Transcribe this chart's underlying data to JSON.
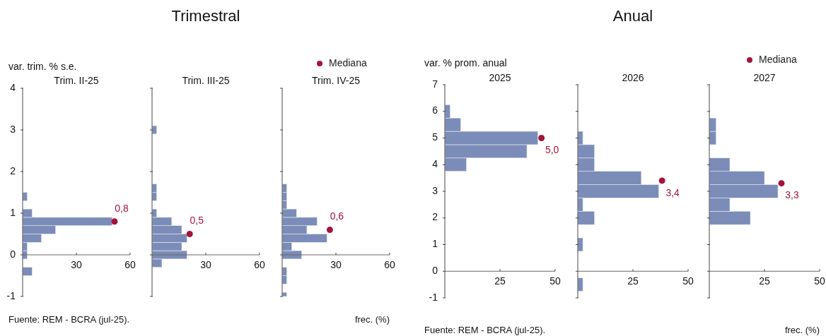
{
  "chart_data": [
    {
      "type": "histogram",
      "orientation": "horizontal",
      "title": "Trim. II-25",
      "ylabel": "var. trim. % s.e.",
      "annotations": [
        "Fuente: REM - BCRA (jul-25).",
        {
          "text": "0,8",
          "x": 51.3,
          "y": 0.8
        }
      ],
      "bins": [
        -0.5,
        -0.3,
        -0.1,
        0.1,
        0.3,
        0.5,
        0.7,
        0.9,
        1.1,
        1.3,
        1.5
      ],
      "xlim": [
        0,
        60
      ],
      "xticks": [
        30,
        60
      ],
      "ylim": [
        -1,
        4
      ],
      "yticks": [
        -1,
        0,
        1,
        2,
        3,
        4
      ],
      "series": [
        {
          "type": "histogram",
          "color": "#7b8cb8",
          "values": [
            5.3,
            0,
            2.6,
            2.6,
            10.5,
            18.4,
            50,
            5.3,
            0,
            2.6
          ]
        },
        {
          "type": "scatter",
          "color": "#a3133c",
          "x": [
            0.8
          ],
          "values": [
            51.3
          ]
        }
      ]
    },
    {
      "type": "histogram",
      "orientation": "horizontal",
      "title": "Trim. III-25",
      "subtitle": "Trimestral",
      "annotations": [
        {
          "text": "0,5",
          "x": 21,
          "y": 0.5
        }
      ],
      "bins": [
        -0.3,
        -0.1,
        0.1,
        0.3,
        0.5,
        0.7,
        0.9,
        1.1,
        1.3,
        1.5,
        1.7,
        1.9,
        2.1,
        2.3,
        2.5,
        2.7,
        2.9,
        3.1
      ],
      "xlim": [
        0,
        60
      ],
      "xticks": [
        30,
        60
      ],
      "ylim": [
        -1,
        4
      ],
      "yticks": [
        -1,
        0,
        1,
        2,
        3,
        4
      ],
      "tick_labels": "x",
      "series": [
        {
          "type": "histogram",
          "color": "#7b8cb8",
          "values": [
            5.5,
            19.5,
            16.6,
            19.5,
            16.6,
            11,
            2.6,
            0,
            2.6,
            2.6,
            0,
            0,
            0,
            0,
            0,
            0,
            2.6
          ]
        },
        {
          "type": "scatter",
          "color": "#a3133c",
          "x": [
            0.5
          ],
          "values": [
            21
          ]
        }
      ]
    },
    {
      "type": "histogram",
      "orientation": "horizontal",
      "title": "Trim. IV-25",
      "xlabel": "frec. (%)",
      "annotations": [
        {
          "text": "0,6",
          "x": 26.6,
          "y": 0.6
        }
      ],
      "legend": "top right",
      "bins": [
        -1,
        -0.9,
        -0.7,
        -0.5,
        -0.3,
        -0.1,
        0.1,
        0.3,
        0.5,
        0.7,
        0.9,
        1.1,
        1.3,
        1.5,
        1.7
      ],
      "xlim": [
        0,
        60
      ],
      "xticks": [
        30,
        60
      ],
      "ylim": [
        -1,
        4
      ],
      "yticks": [
        -1,
        0,
        1,
        2,
        3,
        4
      ],
      "tick_labels": "x",
      "series": [
        {
          "type": "histogram",
          "color": "#7b8cb8",
          "values": [
            2.6,
            0,
            2.6,
            2.6,
            0,
            10.9,
            5.4,
            25,
            13.8,
            19.5,
            8,
            2.6,
            2.6,
            2.6
          ]
        },
        {
          "type": "scatter",
          "name": "Mediana",
          "color": "#a3133c",
          "x": [
            0.6
          ],
          "values": [
            26.6
          ]
        }
      ]
    },
    {
      "type": "histogram",
      "orientation": "horizontal",
      "title": "2025",
      "ylabel": "var. % prom. anual",
      "annotations": [
        "Fuente: REM - BCRA (jul-25).",
        {
          "text": "5,0",
          "x": 43.8,
          "y": 5.0
        }
      ],
      "bins": [
        3.75,
        4.25,
        4.75,
        5.25,
        5.75,
        6.25
      ],
      "xlim": [
        0,
        50
      ],
      "xticks": [
        25,
        50
      ],
      "ylim": [
        -1,
        7
      ],
      "yticks": [
        -1,
        0,
        1,
        2,
        3,
        4,
        5,
        6,
        7
      ],
      "series": [
        {
          "type": "histogram",
          "color": "#7b8cb8",
          "values": [
            9.8,
            37.2,
            42.2,
            7.2,
            2.4
          ]
        },
        {
          "type": "scatter",
          "color": "#a3133c",
          "x": [
            5.0
          ],
          "values": [
            43.8
          ]
        }
      ]
    },
    {
      "type": "histogram",
      "orientation": "horizontal",
      "title": "2026",
      "subtitle": "Anual",
      "annotations": [
        {
          "text": "3,4",
          "x": 38.2,
          "y": 3.4
        }
      ],
      "bins": [
        -0.75,
        -0.25,
        0.25,
        0.75,
        1.25,
        1.75,
        2.25,
        2.75,
        3.25,
        3.75,
        4.25,
        4.75,
        5.25
      ],
      "xlim": [
        0,
        50
      ],
      "xticks": [
        25,
        50
      ],
      "ylim": [
        -1,
        7
      ],
      "yticks": [
        -1,
        0,
        1,
        2,
        3,
        4,
        5,
        6,
        7
      ],
      "tick_labels": "x",
      "series": [
        {
          "type": "histogram",
          "color": "#7b8cb8",
          "values": [
            2.3,
            0,
            0,
            2.3,
            0,
            7.6,
            2.3,
            36.7,
            28.8,
            7.6,
            7.6,
            2.3
          ]
        },
        {
          "type": "scatter",
          "color": "#a3133c",
          "x": [
            3.4
          ],
          "values": [
            38.2
          ]
        }
      ]
    },
    {
      "type": "histogram",
      "orientation": "horizontal",
      "title": "2027",
      "xlabel": "frec. (%)",
      "annotations": [
        {
          "text": "3,3",
          "x": 32.7,
          "y": 3.3
        }
      ],
      "legend": "top right",
      "bins": [
        1.75,
        2.25,
        2.75,
        3.25,
        3.75,
        4.25,
        4.75,
        5.25,
        5.75
      ],
      "xlim": [
        0,
        50
      ],
      "xticks": [
        25,
        50
      ],
      "ylim": [
        -1,
        7
      ],
      "yticks": [
        -1,
        0,
        1,
        2,
        3,
        4,
        5,
        6,
        7
      ],
      "tick_labels": "x",
      "series": [
        {
          "type": "histogram",
          "color": "#7b8cb8",
          "values": [
            18.6,
            9.3,
            31.1,
            25,
            9.3,
            0,
            3.1,
            3.1
          ]
        },
        {
          "type": "scatter",
          "name": "Mediana",
          "color": "#a3133c",
          "x": [
            3.3
          ],
          "values": [
            32.7
          ]
        }
      ]
    }
  ]
}
